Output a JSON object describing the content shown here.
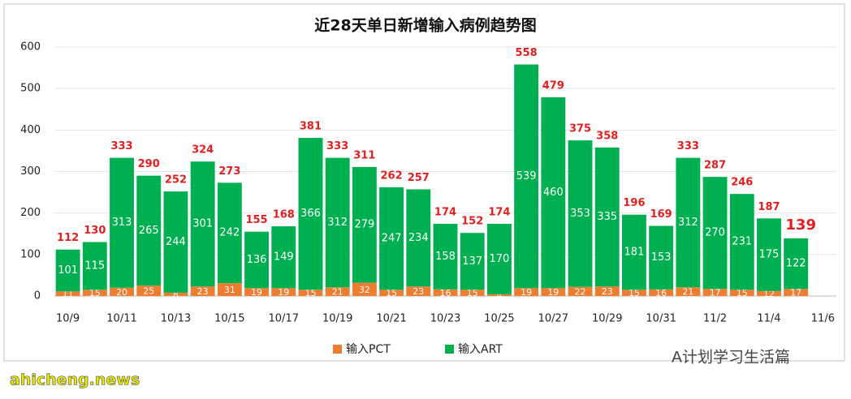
{
  "chart_data": {
    "type": "stacked_bar",
    "title": "近28天单日新增输入病例趋势图",
    "categories": [
      "10/9",
      null,
      "10/11",
      null,
      "10/13",
      null,
      "10/15",
      null,
      "10/17",
      null,
      "10/19",
      null,
      "10/21",
      null,
      "10/23",
      null,
      "10/25",
      null,
      "10/27",
      null,
      "10/29",
      null,
      "10/31",
      null,
      "11/2",
      null,
      "11/4",
      null,
      "11/6"
    ],
    "series": [
      {
        "name": "输入PCT",
        "color": "#ed7d31",
        "values": [
          11,
          15,
          20,
          25,
          8,
          23,
          31,
          19,
          19,
          15,
          21,
          32,
          15,
          23,
          16,
          15,
          4,
          19,
          19,
          22,
          23,
          15,
          16,
          21,
          17,
          15,
          12,
          17,
          null
        ]
      },
      {
        "name": "输入ART",
        "color": "#00b050",
        "values": [
          101,
          115,
          313,
          265,
          244,
          301,
          242,
          136,
          149,
          366,
          312,
          279,
          247,
          234,
          158,
          137,
          170,
          539,
          460,
          353,
          335,
          181,
          153,
          312,
          270,
          231,
          175,
          122,
          null
        ]
      }
    ],
    "totals": [
      112,
      130,
      333,
      290,
      252,
      324,
      273,
      155,
      168,
      381,
      333,
      311,
      262,
      257,
      174,
      152,
      174,
      558,
      479,
      375,
      358,
      196,
      169,
      333,
      287,
      246,
      187,
      139,
      null
    ],
    "total_color": "#e02020",
    "ylim": [
      0,
      600
    ],
    "yticks": [
      0,
      100,
      200,
      300,
      400,
      500,
      600
    ],
    "grid": true,
    "legend": "bottom",
    "watermarks": [
      "A计划学习生活篇",
      "ahicheng.news"
    ]
  }
}
